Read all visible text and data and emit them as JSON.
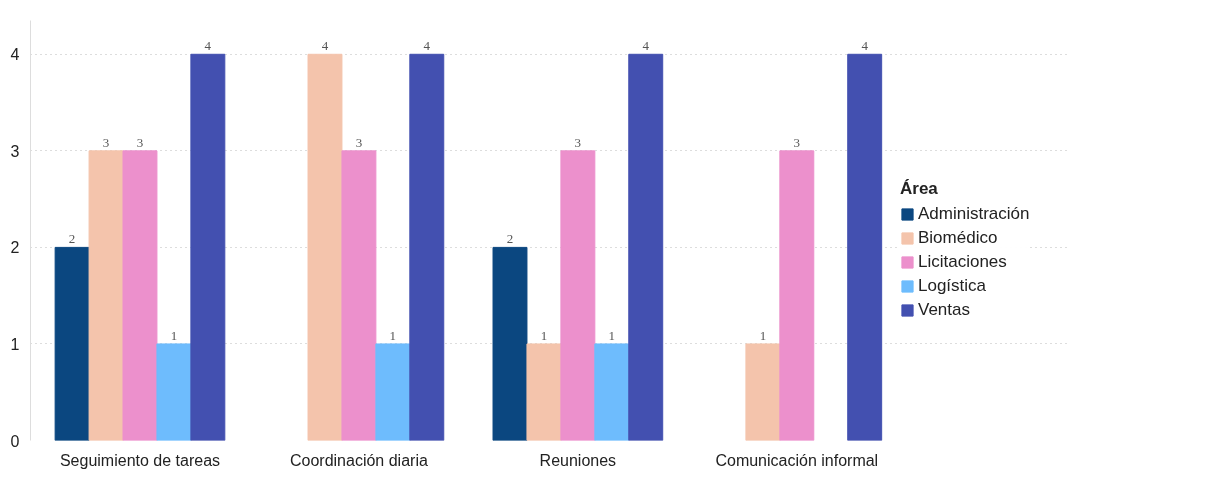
{
  "chart_data": {
    "type": "bar",
    "categories": [
      "Seguimiento de tareas",
      "Coordinación diaria",
      "Reuniones",
      "Comunicación informal"
    ],
    "series": [
      {
        "name": "Administración",
        "color": "#0b4780",
        "values": [
          2,
          null,
          2,
          null
        ]
      },
      {
        "name": "Biomédico",
        "color": "#f4c4ac",
        "values": [
          3,
          4,
          1,
          1
        ]
      },
      {
        "name": "Licitaciones",
        "color": "#ec90cc",
        "values": [
          3,
          3,
          3,
          3
        ]
      },
      {
        "name": "Logística",
        "color": "#6ebcfd",
        "values": [
          1,
          1,
          1,
          null
        ]
      },
      {
        "name": "Ventas",
        "color": "#4350b0",
        "values": [
          4,
          4,
          4,
          4
        ]
      }
    ],
    "legend_title": "Área",
    "legend": "right",
    "ylim": [
      0,
      4.35
    ],
    "yticks": [
      0,
      1,
      2,
      3,
      4
    ],
    "grid": "y",
    "data_labels": true
  }
}
